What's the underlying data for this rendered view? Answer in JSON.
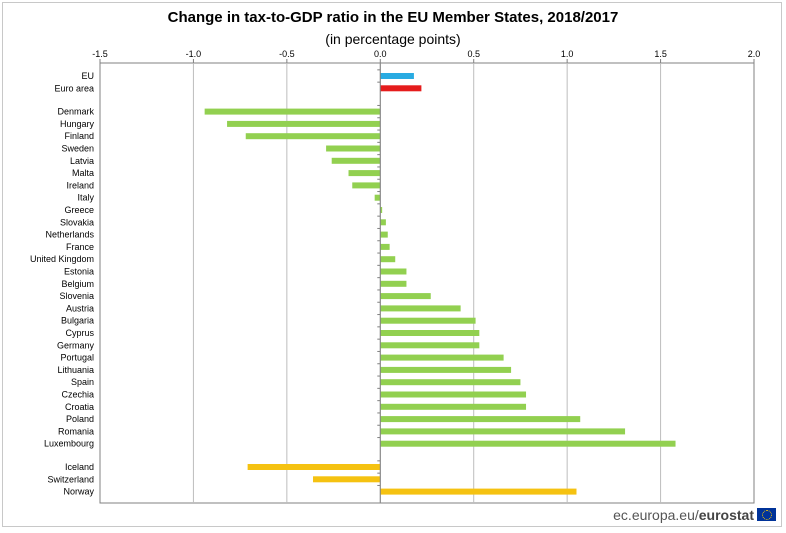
{
  "chart_data": {
    "type": "bar",
    "orientation": "horizontal",
    "title": "Change in tax-to-GDP ratio in the EU Member States, 2018/2017",
    "subtitle": "(in percentage points)",
    "xlim": [
      -1.5,
      2.0
    ],
    "xticks": [
      -1.5,
      -1.0,
      -0.5,
      0.0,
      0.5,
      1.0,
      1.5,
      2.0
    ],
    "xtick_labels": [
      "-1.5",
      "-1.0",
      "-0.5",
      "0.0",
      "0.5",
      "1.0",
      "1.5",
      "2.0"
    ],
    "grid": true,
    "colors": {
      "eu": "#29abe2",
      "euro_area": "#e51c1c",
      "member": "#92d050",
      "efta": "#f5c211"
    },
    "groups": [
      {
        "name": "aggregates",
        "items": [
          {
            "label": "EU",
            "value": 0.18,
            "color": "#29abe2"
          },
          {
            "label": "Euro area",
            "value": 0.22,
            "color": "#e51c1c"
          }
        ]
      },
      {
        "name": "member-states",
        "items": [
          {
            "label": "Denmark",
            "value": -0.94,
            "color": "#92d050"
          },
          {
            "label": "Hungary",
            "value": -0.82,
            "color": "#92d050"
          },
          {
            "label": "Finland",
            "value": -0.72,
            "color": "#92d050"
          },
          {
            "label": "Sweden",
            "value": -0.29,
            "color": "#92d050"
          },
          {
            "label": "Latvia",
            "value": -0.26,
            "color": "#92d050"
          },
          {
            "label": "Malta",
            "value": -0.17,
            "color": "#92d050"
          },
          {
            "label": "Ireland",
            "value": -0.15,
            "color": "#92d050"
          },
          {
            "label": "Italy",
            "value": -0.03,
            "color": "#92d050"
          },
          {
            "label": "Greece",
            "value": 0.01,
            "color": "#92d050"
          },
          {
            "label": "Slovakia",
            "value": 0.03,
            "color": "#92d050"
          },
          {
            "label": "Netherlands",
            "value": 0.04,
            "color": "#92d050"
          },
          {
            "label": "France",
            "value": 0.05,
            "color": "#92d050"
          },
          {
            "label": "United Kingdom",
            "value": 0.08,
            "color": "#92d050"
          },
          {
            "label": "Estonia",
            "value": 0.14,
            "color": "#92d050"
          },
          {
            "label": "Belgium",
            "value": 0.14,
            "color": "#92d050"
          },
          {
            "label": "Slovenia",
            "value": 0.27,
            "color": "#92d050"
          },
          {
            "label": "Austria",
            "value": 0.43,
            "color": "#92d050"
          },
          {
            "label": "Bulgaria",
            "value": 0.51,
            "color": "#92d050"
          },
          {
            "label": "Cyprus",
            "value": 0.53,
            "color": "#92d050"
          },
          {
            "label": "Germany",
            "value": 0.53,
            "color": "#92d050"
          },
          {
            "label": "Portugal",
            "value": 0.66,
            "color": "#92d050"
          },
          {
            "label": "Lithuania",
            "value": 0.7,
            "color": "#92d050"
          },
          {
            "label": "Spain",
            "value": 0.75,
            "color": "#92d050"
          },
          {
            "label": "Czechia",
            "value": 0.78,
            "color": "#92d050"
          },
          {
            "label": "Croatia",
            "value": 0.78,
            "color": "#92d050"
          },
          {
            "label": "Poland",
            "value": 1.07,
            "color": "#92d050"
          },
          {
            "label": "Romania",
            "value": 1.31,
            "color": "#92d050"
          },
          {
            "label": "Luxembourg",
            "value": 1.58,
            "color": "#92d050"
          }
        ]
      },
      {
        "name": "efta",
        "items": [
          {
            "label": "Iceland",
            "value": -0.71,
            "color": "#f5c211"
          },
          {
            "label": "Switzerland",
            "value": -0.36,
            "color": "#f5c211"
          },
          {
            "label": "Norway",
            "value": 1.05,
            "color": "#f5c211"
          }
        ]
      }
    ]
  },
  "footer": {
    "source_prefix": "ec.europa.eu/",
    "source_brand": "eurostat"
  }
}
